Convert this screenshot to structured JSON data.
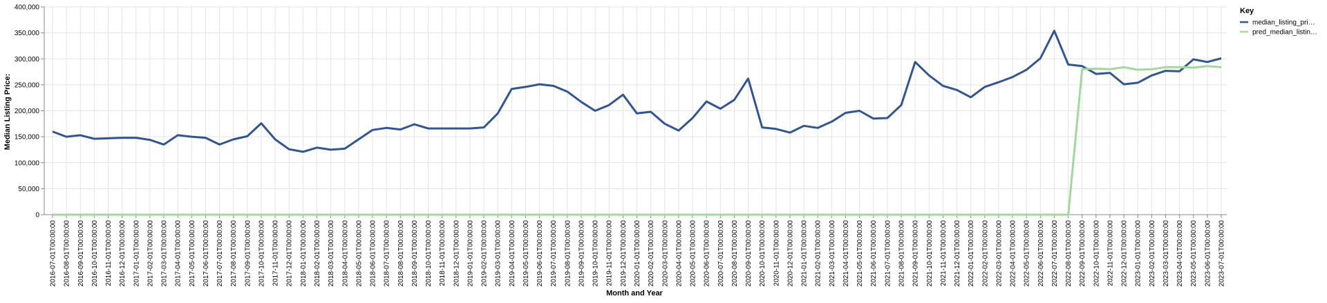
{
  "chart_data": {
    "type": "line",
    "title": "",
    "xlabel": "Month and Year",
    "ylabel": "Median Listing Price:",
    "ylim": [
      0,
      400000
    ],
    "y_ticks": [
      "0",
      "50,000",
      "100,000",
      "150,000",
      "200,000",
      "250,000",
      "300,000",
      "350,000",
      "400,000"
    ],
    "grid": true,
    "legend": {
      "title": "Key",
      "placement": "top-right",
      "entries": [
        "median_listing_pri…",
        "pred_median_listin…"
      ]
    },
    "colors": {
      "median_listing_price": "#2f5597",
      "pred_median_listing_price": "#a1d99b"
    },
    "x": [
      "2016-07-01T00:00:00",
      "2016-08-01T00:00:00",
      "2016-09-01T00:00:00",
      "2016-10-01T00:00:00",
      "2016-11-01T00:00:00",
      "2016-12-01T00:00:00",
      "2017-01-01T00:00:00",
      "2017-02-01T00:00:00",
      "2017-03-01T00:00:00",
      "2017-04-01T00:00:00",
      "2017-05-01T00:00:00",
      "2017-06-01T00:00:00",
      "2017-07-01T00:00:00",
      "2017-08-01T00:00:00",
      "2017-09-01T00:00:00",
      "2017-10-01T00:00:00",
      "2017-11-01T00:00:00",
      "2017-12-01T00:00:00",
      "2018-01-01T00:00:00",
      "2018-02-01T00:00:00",
      "2018-03-01T00:00:00",
      "2018-04-01T00:00:00",
      "2018-05-01T00:00:00",
      "2018-06-01T00:00:00",
      "2018-07-01T00:00:00",
      "2018-08-01T00:00:00",
      "2018-09-01T00:00:00",
      "2018-10-01T00:00:00",
      "2018-11-01T00:00:00",
      "2018-12-01T00:00:00",
      "2019-01-01T00:00:00",
      "2019-02-01T00:00:00",
      "2019-03-01T00:00:00",
      "2019-04-01T00:00:00",
      "2019-05-01T00:00:00",
      "2019-06-01T00:00:00",
      "2019-07-01T00:00:00",
      "2019-08-01T00:00:00",
      "2019-09-01T00:00:00",
      "2019-10-01T00:00:00",
      "2019-11-01T00:00:00",
      "2019-12-01T00:00:00",
      "2020-01-01T00:00:00",
      "2020-02-01T00:00:00",
      "2020-03-01T00:00:00",
      "2020-04-01T00:00:00",
      "2020-05-01T00:00:00",
      "2020-06-01T00:00:00",
      "2020-07-01T00:00:00",
      "2020-08-01T00:00:00",
      "2020-09-01T00:00:00",
      "2020-10-01T00:00:00",
      "2020-11-01T00:00:00",
      "2020-12-01T00:00:00",
      "2021-01-01T00:00:00",
      "2021-02-01T00:00:00",
      "2021-03-01T00:00:00",
      "2021-04-01T00:00:00",
      "2021-05-01T00:00:00",
      "2021-06-01T00:00:00",
      "2021-07-01T00:00:00",
      "2021-08-01T00:00:00",
      "2021-09-01T00:00:00",
      "2021-10-01T00:00:00",
      "2021-11-01T00:00:00",
      "2021-12-01T00:00:00",
      "2022-01-01T00:00:00",
      "2022-02-01T00:00:00",
      "2022-03-01T00:00:00",
      "2022-04-01T00:00:00",
      "2022-05-01T00:00:00",
      "2022-06-01T00:00:00",
      "2022-07-01T00:00:00",
      "2022-08-01T00:00:00",
      "2022-09-01T00:00:00",
      "2022-10-01T00:00:00",
      "2022-11-01T00:00:00",
      "2022-12-01T00:00:00",
      "2023-01-01T00:00:00",
      "2023-02-01T00:00:00",
      "2023-03-01T00:00:00",
      "2023-04-01T00:00:00",
      "2023-05-01T00:00:00",
      "2023-06-01T00:00:00",
      "2023-07-01T00:00:00"
    ],
    "series": [
      {
        "name": "median_listing_price",
        "values": [
          160000,
          150000,
          153000,
          146000,
          147000,
          148000,
          148000,
          144000,
          135000,
          153000,
          150000,
          148000,
          135000,
          145000,
          151000,
          176000,
          145000,
          126000,
          121000,
          129000,
          125000,
          127000,
          145000,
          163000,
          167000,
          164000,
          174000,
          166000,
          166000,
          166000,
          166000,
          168000,
          195000,
          242000,
          246000,
          251000,
          248000,
          237000,
          217000,
          200000,
          211000,
          231000,
          195000,
          198000,
          175000,
          162000,
          186000,
          218000,
          204000,
          221000,
          262000,
          168000,
          165000,
          158000,
          171000,
          167000,
          179000,
          196000,
          200000,
          185000,
          186000,
          211000,
          294000,
          268000,
          248000,
          240000,
          226000,
          246000,
          255000,
          265000,
          279000,
          301000,
          354000,
          289000,
          286000,
          271000,
          273000,
          251000,
          254000,
          268000,
          277000,
          276000,
          299000,
          294000,
          301000
        ]
      },
      {
        "name": "pred_median_listing_price",
        "values": [
          0,
          0,
          0,
          0,
          0,
          0,
          0,
          0,
          0,
          0,
          0,
          0,
          0,
          0,
          0,
          0,
          0,
          0,
          0,
          0,
          0,
          0,
          0,
          0,
          0,
          0,
          0,
          0,
          0,
          0,
          0,
          0,
          0,
          0,
          0,
          0,
          0,
          0,
          0,
          0,
          0,
          0,
          0,
          0,
          0,
          0,
          0,
          0,
          0,
          0,
          0,
          0,
          0,
          0,
          0,
          0,
          0,
          0,
          0,
          0,
          0,
          0,
          0,
          0,
          0,
          0,
          0,
          0,
          0,
          0,
          0,
          0,
          0,
          0,
          280000,
          281000,
          280000,
          284000,
          279000,
          280000,
          284000,
          284000,
          283000,
          286000,
          284000
        ]
      }
    ]
  }
}
